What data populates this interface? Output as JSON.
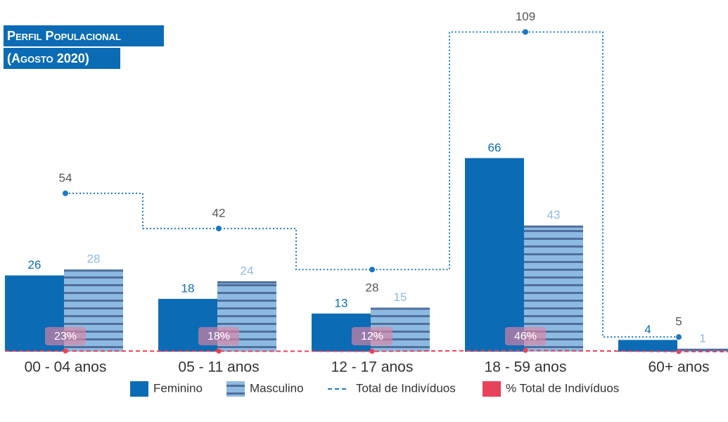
{
  "chart_data": {
    "type": "bar",
    "title": "Perfil Populacional",
    "subtitle": "(Agosto 2020)",
    "categories": [
      "00 - 04 anos",
      "05 - 11 anos",
      "12 - 17 anos",
      "18 - 59 anos",
      "60+ anos"
    ],
    "series": [
      {
        "name": "Feminino",
        "color": "#0b6cb5",
        "values": [
          26,
          18,
          13,
          66,
          4
        ]
      },
      {
        "name": "Masculino",
        "color": "#8dbae0",
        "values": [
          28,
          24,
          15,
          43,
          1
        ]
      },
      {
        "name": "Total de Indivíduos",
        "type": "line",
        "color": "#1a78c2",
        "values": [
          54,
          42,
          28,
          109,
          5
        ]
      },
      {
        "name": "% Total de Indivíduos",
        "type": "line",
        "color": "#e8415a",
        "values": [
          23,
          18,
          12,
          46,
          2
        ],
        "value_labels": [
          "23%",
          "18%",
          "12%",
          "46%",
          null
        ]
      }
    ],
    "ylim": [
      0,
      120
    ],
    "legend": "bottom"
  }
}
